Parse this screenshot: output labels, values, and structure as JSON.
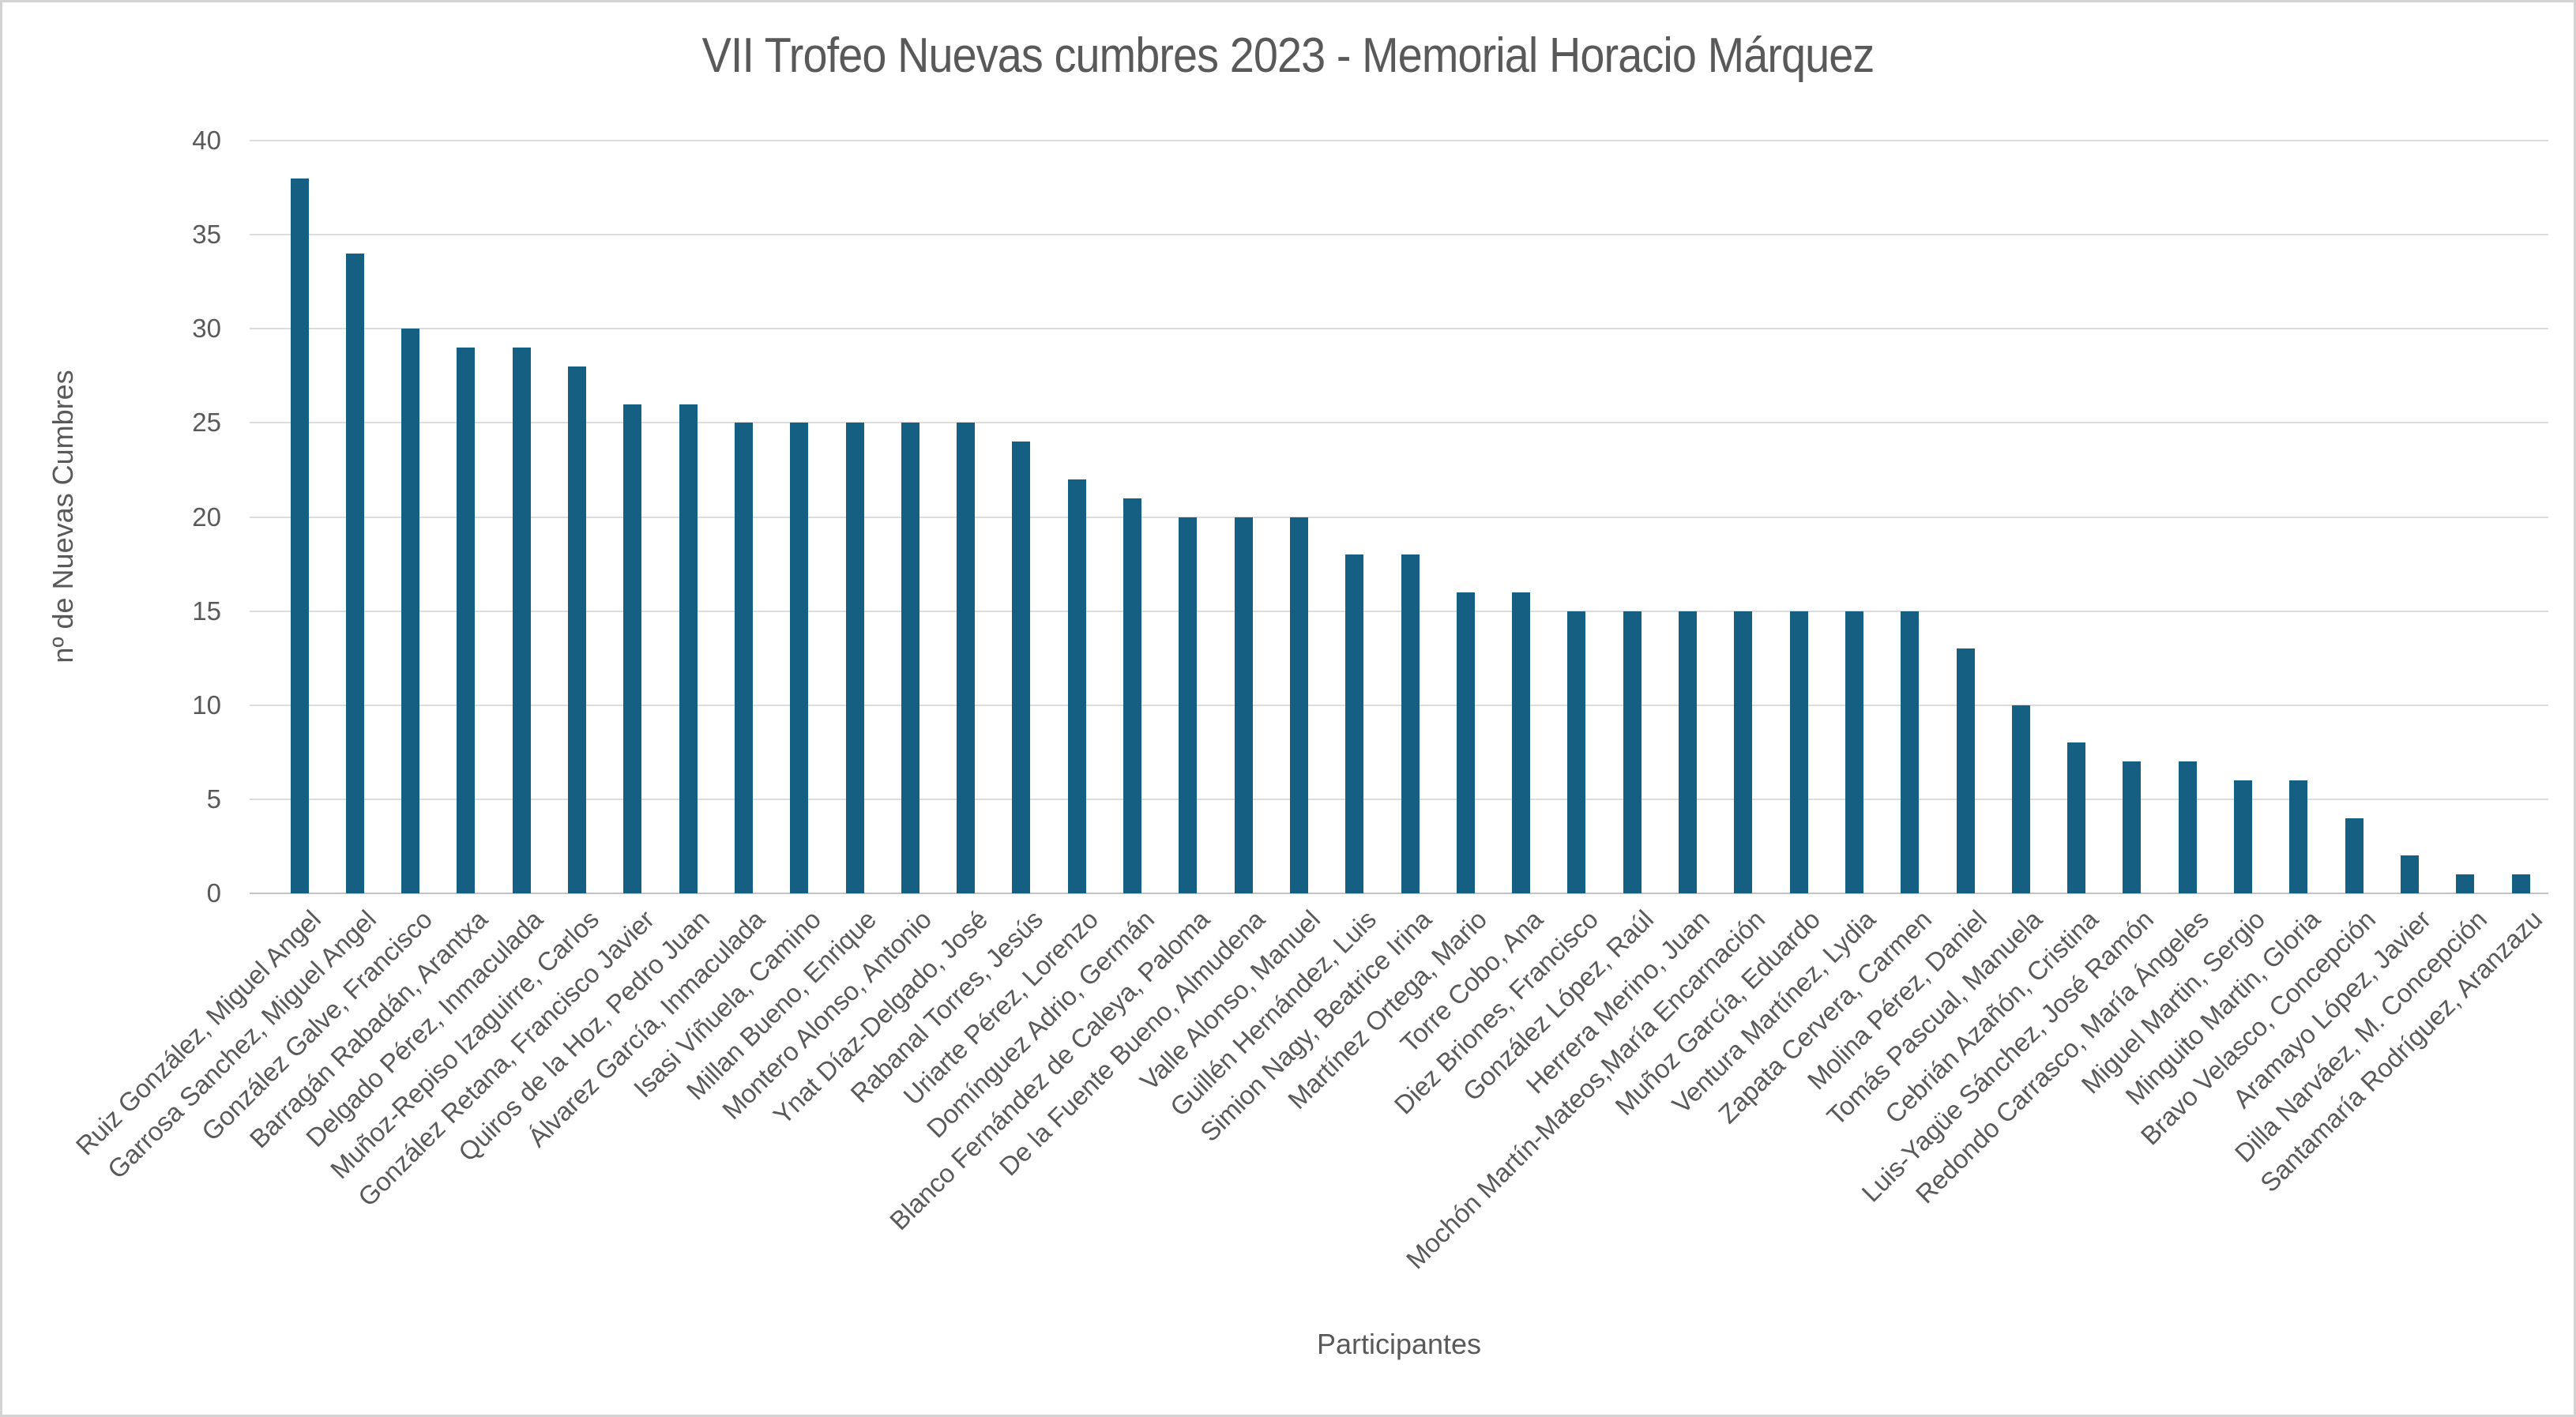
{
  "title": "VII Trofeo Nuevas cumbres 2023 - Memorial Horacio Márquez",
  "colors": {
    "bar": "#156082",
    "text": "#595959",
    "gridline": "#DCDCDC",
    "axis_line": "#C3C3C3",
    "frame_border": "#D3D3D3",
    "background": "#FFFFFF"
  },
  "chart_data": {
    "type": "bar",
    "title": "VII Trofeo Nuevas cumbres 2023 - Memorial Horacio Márquez",
    "xlabel": "Participantes",
    "ylabel": "nº de Nuevas Cumbres",
    "ylim": [
      0,
      40
    ],
    "yticks": [
      0,
      5,
      10,
      15,
      20,
      25,
      30,
      35,
      40
    ],
    "grid": true,
    "legend": false,
    "bar_color": "#156082",
    "categories": [
      "Ruiz González, Miguel Angel",
      "Garrosa Sanchez, Miguel Angel",
      "González Galve, Francisco",
      "Barragán Rabadán, Arantxa",
      "Delgado Pérez, Inmaculada",
      "Muñoz-Repiso Izaguirre, Carlos",
      "González Retana, Francisco Javier",
      "Quiros de la Hoz, Pedro Juan",
      "Álvarez García, Inmaculada",
      "Isasi Viñuela, Camino",
      "Millan Bueno, Enrique",
      "Montero Alonso, Antonio",
      "Ynat Díaz-Delgado, José",
      "Rabanal Torres, Jesús",
      "Uriarte Pérez, Lorenzo",
      "Domínguez Adrio, Germán",
      "Blanco Fernández de Caleya, Paloma",
      "De la Fuente Bueno, Almudena",
      "Valle Alonso, Manuel",
      "Guillén Hernández, Luis",
      "Simion Nagy, Beatrice Irina",
      "Martínez Ortega, Mario",
      "Torre Cobo, Ana",
      "Diez Briones, Francisco",
      "González López, Raúl",
      "Herrera Merino, Juan",
      "Mochón Martín-Mateos,María Encarnación",
      "Muñoz García, Eduardo",
      "Ventura Martínez, Lydia",
      "Zapata Cervera, Carmen",
      "Molina Pérez, Daniel",
      "Tomás Pascual, Manuela",
      "Cebrián Azañón, Cristina",
      "Luis-Yagüe Sánchez, José Ramón",
      "Redondo Carrasco, María Ángeles",
      "Miguel Martin, Sergio",
      "Minguito Martin, Gloria",
      "Bravo Velasco, Concepción",
      "Aramayo López, Javier",
      "Dilla Narváez, M. Concepción",
      "Santamaría Rodríguez, Aranzazu"
    ],
    "values": [
      38,
      34,
      30,
      29,
      29,
      28,
      26,
      26,
      25,
      25,
      25,
      25,
      25,
      24,
      22,
      21,
      20,
      20,
      20,
      18,
      18,
      16,
      16,
      15,
      15,
      15,
      15,
      15,
      15,
      15,
      13,
      10,
      8,
      7,
      7,
      6,
      6,
      4,
      2,
      1,
      1
    ]
  }
}
